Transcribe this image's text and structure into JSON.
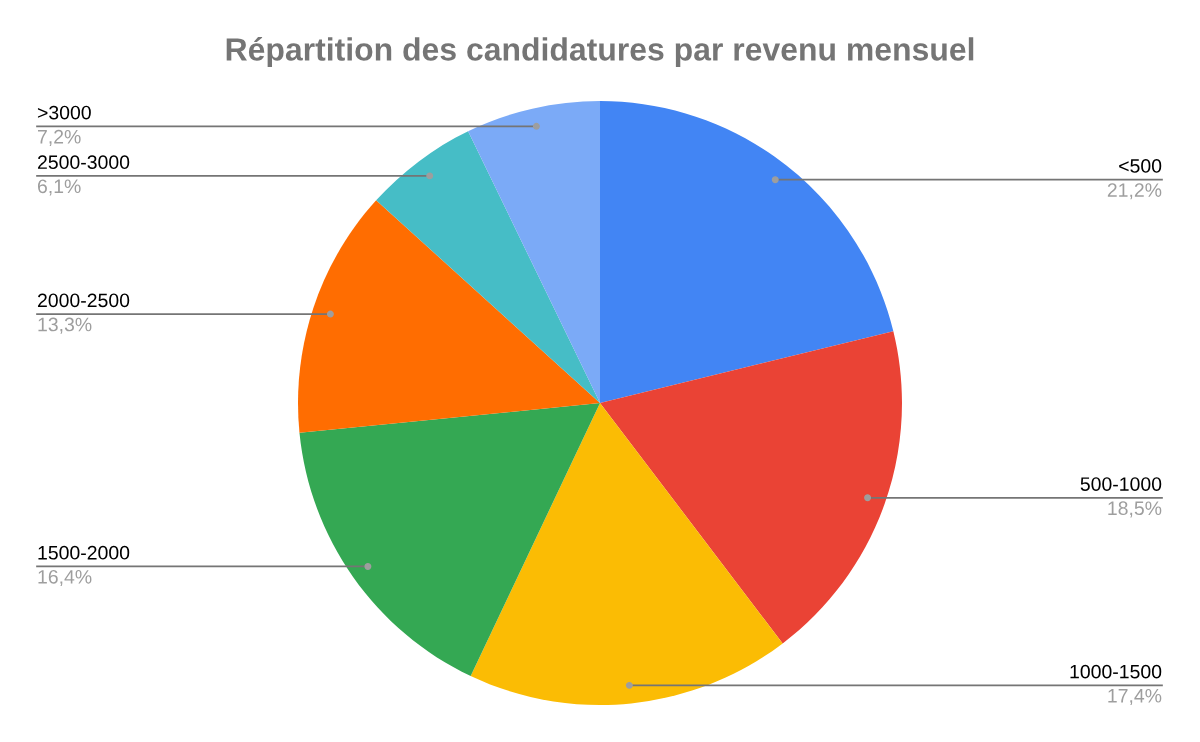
{
  "chart_data": {
    "type": "pie",
    "title": "Répartition des candidatures par revenu mensuel",
    "categories": [
      "<500",
      "500-1000",
      "1000-1500",
      "1500-2000",
      "2000-2500",
      "2500-3000",
      ">3000"
    ],
    "values": [
      21.2,
      18.5,
      17.4,
      16.4,
      13.3,
      6.1,
      7.2
    ],
    "colors": [
      "#4285f4",
      "#ea4335",
      "#fbbc04",
      "#34a853",
      "#ff6d01",
      "#46bdc6",
      "#7baaf7"
    ],
    "value_labels": [
      "21,2%",
      "18,5%",
      "17,4%",
      "16,4%",
      "13,3%",
      "6,1%",
      "7,2%"
    ]
  }
}
